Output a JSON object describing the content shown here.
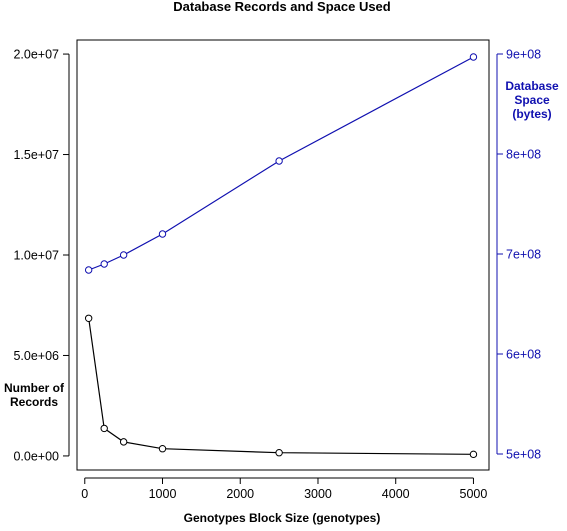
{
  "chart_data": {
    "type": "line",
    "title": "Database Records and Space Used",
    "xlabel": "Genotypes Block Size (genotypes)",
    "ylabel_left": [
      "Number of",
      "Records"
    ],
    "ylabel_right": [
      "Database",
      "Space",
      "(bytes)"
    ],
    "x_ticks": [
      "0",
      "1000",
      "2000",
      "3000",
      "4000",
      "5000"
    ],
    "y_left_ticks": [
      "0.0e+00",
      "5.0e+06",
      "1.0e+07",
      "1.5e+07",
      "2.0e+07"
    ],
    "y_right_ticks": [
      "5e+08",
      "6e+08",
      "7e+08",
      "8e+08",
      "9e+08"
    ],
    "xlim": [
      -100,
      5200
    ],
    "ylim_left": [
      -700000,
      20700000
    ],
    "ylim_right": [
      484000000,
      914000000
    ],
    "grid": false,
    "colors": {
      "records": "#000000",
      "space": "#1010b0",
      "axis": "#000000",
      "right_axis": "#1010b0"
    },
    "series": [
      {
        "axis": "left",
        "marker": "open-circle",
        "x": [
          50,
          250,
          500,
          1000,
          2500,
          5000
        ],
        "y": [
          6850000,
          1370000,
          700000,
          360000,
          160000,
          80000
        ]
      },
      {
        "axis": "right",
        "marker": "open-circle",
        "x": [
          50,
          250,
          500,
          1000,
          2500,
          5000
        ],
        "y": [
          684000000,
          690000000,
          699000000,
          720000000,
          793000000,
          897000000
        ]
      }
    ]
  }
}
